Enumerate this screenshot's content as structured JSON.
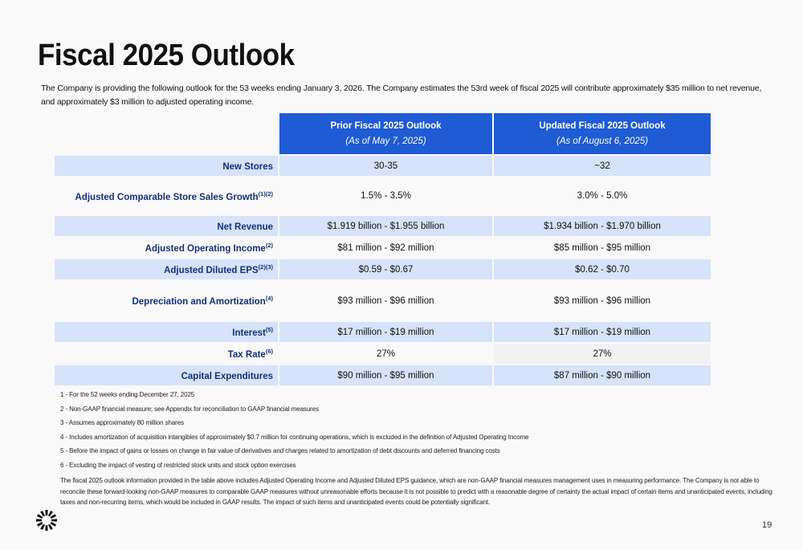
{
  "title": "Fiscal 2025 Outlook",
  "intro": "The Company is providing the following outlook for the 53 weeks ending January 3, 2026. The Company estimates the 53rd week of fiscal 2025 will contribute approximately $35 million to net revenue, and approximately $3 million to adjusted operating income.",
  "table": {
    "headers": [
      {
        "title": "Prior Fiscal 2025 Outlook",
        "sub": "(As of May 7, 2025)"
      },
      {
        "title": "Updated Fiscal 2025 Outlook",
        "sub": "(As of August 6, 2025)"
      }
    ],
    "rows": [
      {
        "label": "New Stores",
        "sup": "",
        "prior": "30-35",
        "updated": "~32"
      },
      {
        "label": "Adjusted Comparable Store Sales Growth",
        "sup": "(1)(2)",
        "prior": "1.5% - 3.5%",
        "updated": "3.0% - 5.0%"
      },
      {
        "label": "Net Revenue",
        "sup": "",
        "prior": "$1.919 billion - $1.955 billion",
        "updated": "$1.934 billion - $1.970 billion"
      },
      {
        "label": "Adjusted Operating Income",
        "sup": "(2)",
        "prior": "$81 million - $92 million",
        "updated": "$85 million - $95 million"
      },
      {
        "label": "Adjusted Diluted EPS",
        "sup": "(2)(3)",
        "prior": "$0.59 - $0.67",
        "updated": "$0.62 - $0.70"
      },
      {
        "label": "Depreciation and Amortization",
        "sup": "(4)",
        "prior": "$93 million - $96 million",
        "updated": "$93 million - $96 million"
      },
      {
        "label": "Interest",
        "sup": "(5)",
        "prior": "$17 million - $19 million",
        "updated": "$17 million - $19 million"
      },
      {
        "label": "Tax Rate",
        "sup": "(6)",
        "prior": "27%",
        "updated": "27%"
      },
      {
        "label": "Capital Expenditures",
        "sup": "",
        "prior": "$90 million - $95 million",
        "updated": "$87 million - $90 million"
      }
    ]
  },
  "footnotes": [
    "1 - For the 52 weeks ending December 27, 2025",
    "2 - Non-GAAP financial measure; see Appendix for reconciliation to GAAP financial measures",
    "3 - Assumes approximately 80 million shares",
    "4 - Includes amortization of acquisition intangibles of approximately $0.7 million for continuing operations, which is excluded in the definition of Adjusted Operating Income",
    "5 - Before the impact of gains or losses on change in fair value of derivatives and charges related to amortization of debt discounts and deferred financing costs",
    "6 - Excluding the impact of vesting of restricted stock units and stock option exercises"
  ],
  "disclaimer": "The fiscal 2025 outlook information provided in the table above includes Adjusted Operating Income and Adjusted Diluted EPS guidance, which are non-GAAP financial measures management uses in measuring performance. The Company is not able to reconcile these forward-looking non-GAAP measures to comparable GAAP measures without unreasonable efforts because it is not possible to predict with a reasonable degree of certainty the actual impact of certain items and unanticipated events, including taxes and non-recurring items, which would be included in GAAP results. The impact of such items and unanticipated events could be potentially significant.",
  "page_number": "19",
  "logo_icon": "starburst-logo-icon",
  "colors": {
    "header_blue": "#1e5bd4",
    "row_shade": "#d6e3fb",
    "label_navy": "#14307a"
  }
}
